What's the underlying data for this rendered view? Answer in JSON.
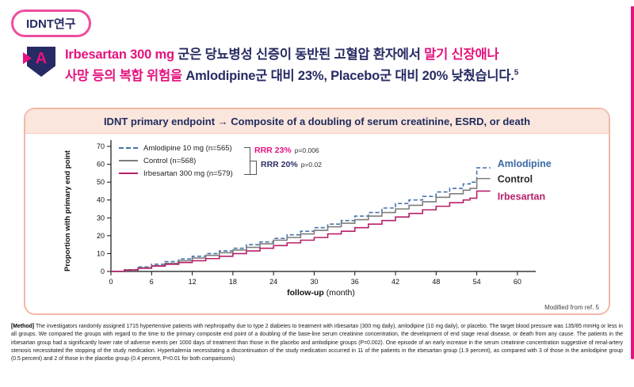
{
  "header": {
    "badge": "IDNT연구"
  },
  "headline": {
    "icon_letter": "A",
    "segments": [
      {
        "text": "Irbesartan 300 mg",
        "color": "magenta"
      },
      {
        "text": " 군은 당뇨병성 신증이 동반된 고혈압 환자에서 ",
        "color": "navy"
      },
      {
        "text": "말기 신장애나",
        "color": "magenta"
      },
      {
        "br": true
      },
      {
        "text": "사망 등의 복합 위험을",
        "color": "magenta"
      },
      {
        "text": " Amlodipine군 대비 23%, Placebo군 대비 20% 낮췄습니다.",
        "color": "navy"
      },
      {
        "text": "5",
        "color": "navy",
        "sup": true
      }
    ]
  },
  "chart_data": {
    "type": "line",
    "title": "IDNT primary endpoint → Composite of a doubling of serum creatinine, ESRD, or death",
    "xlabel_bold": "follow-up",
    "xlabel_rest": "(month)",
    "ylabel": "Proportion with primary end point",
    "xlim": [
      0,
      62
    ],
    "ylim": [
      0,
      70
    ],
    "xticks": [
      0,
      6,
      12,
      18,
      24,
      30,
      36,
      42,
      48,
      54,
      60
    ],
    "yticks": [
      0,
      10,
      20,
      30,
      40,
      50,
      60,
      70
    ],
    "legend_position": "top-left",
    "series": [
      {
        "name": "Amlodipine 10 mg (n=565)",
        "end_label": "Amlodipine",
        "color": "#4673a9",
        "label_color": "#3a6aa5",
        "dash": true,
        "x": [
          0,
          2,
          4,
          6,
          8,
          10,
          12,
          14,
          16,
          18,
          20,
          22,
          24,
          26,
          28,
          30,
          32,
          34,
          36,
          38,
          40,
          42,
          44,
          46,
          48,
          50,
          52,
          53,
          54,
          56
        ],
        "y": [
          0,
          1,
          2.5,
          4,
          5.5,
          7,
          8.5,
          10,
          11.5,
          13,
          15,
          16.5,
          18.5,
          20.5,
          22.5,
          24.5,
          26.5,
          28.5,
          31,
          33,
          35.5,
          38,
          40,
          42,
          44.5,
          46.5,
          49,
          50,
          58,
          58
        ]
      },
      {
        "name": "Control (n=568)",
        "end_label": "Control",
        "color": "#7d7d7d",
        "label_color": "#2b2b2b",
        "dash": false,
        "x": [
          0,
          2,
          4,
          6,
          8,
          10,
          12,
          14,
          16,
          18,
          20,
          22,
          24,
          26,
          28,
          30,
          32,
          34,
          36,
          38,
          40,
          42,
          44,
          46,
          48,
          50,
          52,
          53,
          54,
          56
        ],
        "y": [
          0,
          0.8,
          2,
          3.2,
          4.5,
          6,
          7.5,
          9,
          10.5,
          12,
          13.5,
          15.5,
          17.5,
          19,
          21,
          23,
          25,
          27,
          29,
          31,
          33,
          35,
          37,
          39,
          41.5,
          43.5,
          45.5,
          46.5,
          52,
          52
        ]
      },
      {
        "name": "Irbesartan 300 mg (n=579)",
        "end_label": "Irbesartan",
        "color": "#b72069",
        "label_color": "#b72069",
        "dash": false,
        "x": [
          0,
          2,
          4,
          6,
          8,
          10,
          12,
          14,
          16,
          18,
          20,
          22,
          24,
          26,
          28,
          30,
          32,
          34,
          36,
          38,
          40,
          42,
          44,
          46,
          48,
          50,
          52,
          53,
          54,
          56
        ],
        "y": [
          0,
          0.8,
          1.8,
          3,
          4,
          5,
          6,
          7.2,
          8.5,
          10,
          11.5,
          13,
          14.5,
          16,
          17.5,
          19,
          21,
          22.5,
          24.5,
          26.5,
          28.5,
          30.5,
          32.5,
          34.5,
          36.5,
          38.5,
          40,
          41,
          45,
          45
        ]
      }
    ],
    "annotations": [
      {
        "rrr": "RRR 23%",
        "p": "p=0.006"
      },
      {
        "rrr": "RRR 20%",
        "p": "p=0.02"
      }
    ],
    "source_note": "Modified from ref. 5"
  },
  "method": {
    "label": "[Method]",
    "body": "The investigators randomly assigned 1715 hypertensive patients with nephropathy due to type 2 diabetes to treatment with irbesartan (300 mg daily), amlodipine (10 mg daily), or placebo. The target blood pressure was 135/85 mmHg or less in all groups. We compared the groups with regard to the time to the primary composite end point of a doubling of the base-line serum creatinine concentration, the development of end stage renal disease, or death from any cause. The patients in the irbesartan group had a significantly lower rate of adverse events per 1000 days of treatment than those in the placebo and amlodipine groups (P=0.002). One episode of an early increase in the serum creatinine concentration suggestive of renal-artery stenosis necessitated the stopping of the study medication. Hyperkalemia necessitating a discontinuation of the study medication occurred in 11 of the patients in the irbesartan group (1.9 percent), as compared with 3 of those in the amlodipine group (0.5 percent) and 2 of those in the placebo group (0.4 percent, P=0.01 for both comparisons)"
  }
}
